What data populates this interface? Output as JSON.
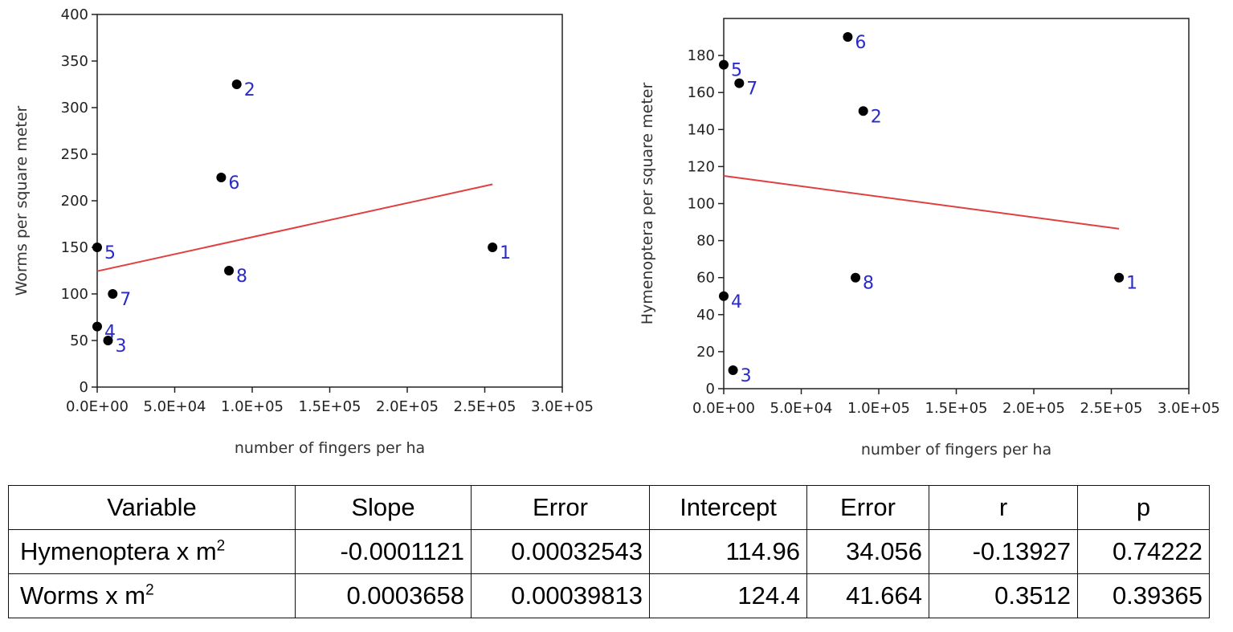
{
  "chart_data": [
    {
      "type": "scatter",
      "xlabel": "number of fingers per ha",
      "ylabel": "Worms per square meter",
      "xlim": [
        0,
        300000
      ],
      "ylim": [
        0,
        400
      ],
      "xticks": [
        "0.0E+00",
        "5.0E+04",
        "1.0E+05",
        "1.5E+05",
        "2.0E+05",
        "2.5E+05",
        "3.0E+05"
      ],
      "yticks": [
        "0",
        "50",
        "100",
        "150",
        "200",
        "250",
        "300",
        "350",
        "400"
      ],
      "points": [
        {
          "label": "1",
          "x": 255000,
          "y": 150
        },
        {
          "label": "2",
          "x": 90000,
          "y": 325
        },
        {
          "label": "3",
          "x": 7000,
          "y": 50
        },
        {
          "label": "4",
          "x": 0,
          "y": 65
        },
        {
          "label": "5",
          "x": 0,
          "y": 150
        },
        {
          "label": "6",
          "x": 80000,
          "y": 225
        },
        {
          "label": "7",
          "x": 10000,
          "y": 100
        },
        {
          "label": "8",
          "x": 85000,
          "y": 125
        }
      ],
      "fit_line": {
        "x": [
          0,
          255000
        ],
        "y": [
          124.4,
          217.7
        ]
      },
      "grid": false,
      "point_color": "#000000",
      "label_color": "#2a2ac8",
      "line_color": "#e04040"
    },
    {
      "type": "scatter",
      "xlabel": "number of fingers per ha",
      "ylabel": "Hymenoptera per square meter",
      "xlim": [
        0,
        300000
      ],
      "ylim": [
        0,
        200
      ],
      "xticks": [
        "0.0E+00",
        "5.0E+04",
        "1.0E+05",
        "1.5E+05",
        "2.0E+05",
        "2.5E+05",
        "3.0E+05"
      ],
      "yticks": [
        "0",
        "20",
        "40",
        "60",
        "80",
        "100",
        "120",
        "140",
        "160",
        "180"
      ],
      "points": [
        {
          "label": "1",
          "x": 255000,
          "y": 60
        },
        {
          "label": "2",
          "x": 90000,
          "y": 150
        },
        {
          "label": "3",
          "x": 6000,
          "y": 10
        },
        {
          "label": "4",
          "x": 0,
          "y": 50
        },
        {
          "label": "5",
          "x": 0,
          "y": 175
        },
        {
          "label": "6",
          "x": 80000,
          "y": 190
        },
        {
          "label": "7",
          "x": 10000,
          "y": 165
        },
        {
          "label": "8",
          "x": 85000,
          "y": 60
        }
      ],
      "fit_line": {
        "x": [
          0,
          255000
        ],
        "y": [
          114.96,
          86.4
        ]
      },
      "grid": false,
      "point_color": "#000000",
      "label_color": "#2a2ac8",
      "line_color": "#e04040"
    }
  ],
  "table": {
    "headers": [
      "Variable",
      "Slope",
      "Error",
      "Intercept",
      "Error",
      "r",
      "p"
    ],
    "rows": [
      {
        "variable": "Hymenoptera x m",
        "sup": "2",
        "slope": "-0.0001121",
        "error": "0.00032543",
        "intercept": "114.96",
        "error2": "34.056",
        "r": "-0.13927",
        "p": "0.74222"
      },
      {
        "variable": "Worms x m",
        "sup": "2",
        "slope": "0.0003658",
        "error": "0.00039813",
        "intercept": "124.4",
        "error2": "41.664",
        "r": "0.3512",
        "p": "0.39365"
      }
    ]
  }
}
